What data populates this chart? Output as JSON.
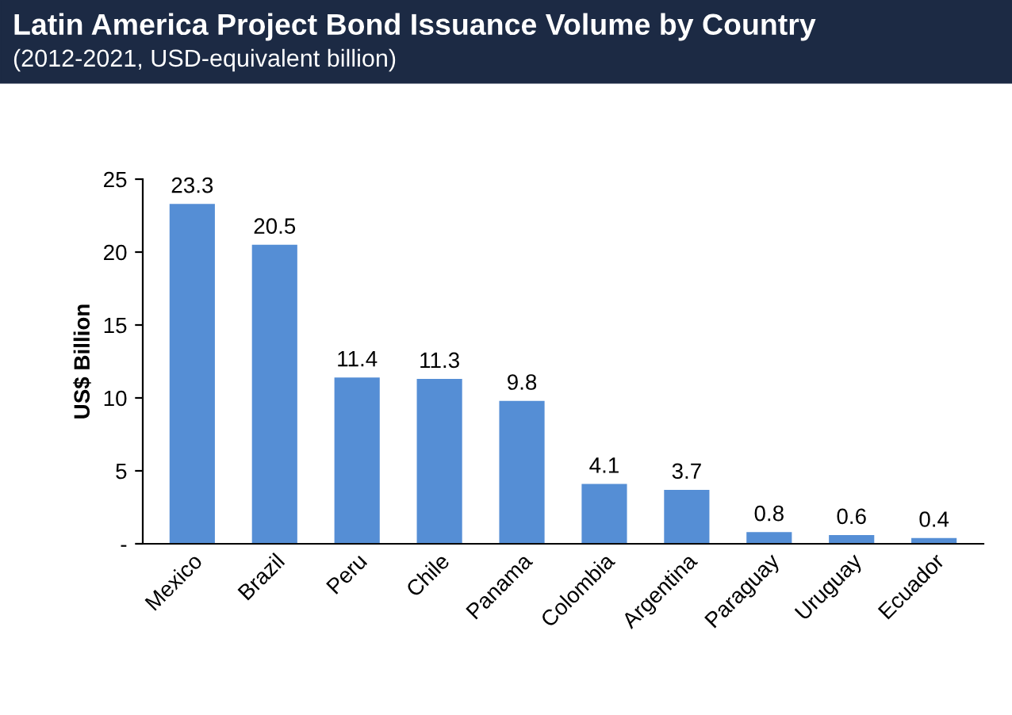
{
  "chart_data": {
    "type": "bar",
    "title": "Latin America Project Bond Issuance Volume by Country",
    "subtitle": "(2012-2021, USD-equivalent billion)",
    "ylabel": "US$ Billion",
    "categories": [
      "Mexico",
      "Brazil",
      "Peru",
      "Chile",
      "Panama",
      "Colombia",
      "Argentina",
      "Paraguay",
      "Uruguay",
      "Ecuador"
    ],
    "values": [
      23.3,
      20.5,
      11.4,
      11.3,
      9.8,
      4.1,
      3.7,
      0.8,
      0.6,
      0.4
    ],
    "color": "#558ed5",
    "ylim": [
      0,
      25
    ],
    "yticks": [
      {
        "value": 0,
        "label": "-"
      },
      5,
      10,
      15,
      20,
      25
    ],
    "data_labels": true,
    "grid": false
  }
}
